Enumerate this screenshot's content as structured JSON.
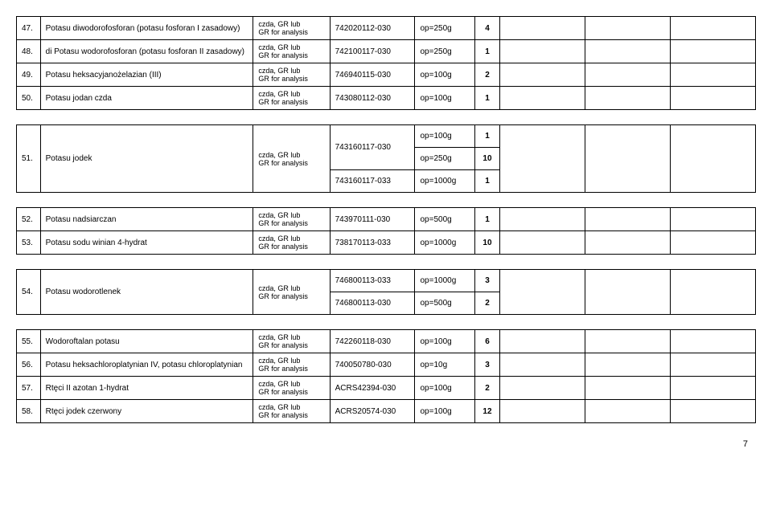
{
  "page_number": "7",
  "type_label": "czda, GR lub\nGR for analysis",
  "rows": [
    {
      "num": "47.",
      "name": "Potasu diwodorofosforan (potasu fosforan I zasadowy)",
      "code": "742020112-030",
      "op": "op=250g",
      "qty": "4"
    },
    {
      "num": "48.",
      "name": "di Potasu wodorofosforan (potasu fosforan II zasadowy)",
      "code": "742100117-030",
      "op": "op=250g",
      "qty": "1"
    },
    {
      "num": "49.",
      "name": "Potasu heksacyjanożelazian (III)",
      "code": "746940115-030",
      "op": "op=100g",
      "qty": "2"
    },
    {
      "num": "50.",
      "name": "Potasu jodan czda",
      "code": "743080112-030",
      "op": "op=100g",
      "qty": "1"
    }
  ],
  "row51": {
    "num": "51.",
    "name": "Potasu jodek",
    "sub": [
      {
        "code": "743160117-030",
        "op": "op=100g",
        "qty": "1"
      },
      {
        "code": "",
        "op": "op=250g",
        "qty": "10"
      },
      {
        "code": "743160117-033",
        "op": "op=1000g",
        "qty": "1"
      }
    ]
  },
  "rows2": [
    {
      "num": "52.",
      "name": "Potasu nadsiarczan",
      "code": "743970111-030",
      "op": "op=500g",
      "qty": "1"
    },
    {
      "num": "53.",
      "name": "Potasu sodu winian  4-hydrat",
      "code": "738170113-033",
      "op": "op=1000g",
      "qty": "10"
    }
  ],
  "row54": {
    "num": "54.",
    "name": "Potasu wodorotlenek",
    "sub": [
      {
        "code": "746800113-033",
        "op": "op=1000g",
        "qty": "3"
      },
      {
        "code": "746800113-030",
        "op": "op=500g",
        "qty": "2"
      }
    ]
  },
  "rows3": [
    {
      "num": "55.",
      "name": "Wodoroftalan potasu",
      "code": "742260118-030",
      "op": "op=100g",
      "qty": "6"
    },
    {
      "num": "56.",
      "name": "Potasu heksachloroplatynian IV, potasu chloroplatynian",
      "code": "740050780-030",
      "op": "op=10g",
      "qty": "3"
    },
    {
      "num": "57.",
      "name": "Rtęci II azotan 1-hydrat",
      "code": "ACRS42394-030",
      "op": "op=100g",
      "qty": "2"
    },
    {
      "num": "58.",
      "name": "Rtęci jodek czerwony",
      "code": "ACRS20574-030",
      "op": "op=100g",
      "qty": "12"
    }
  ]
}
